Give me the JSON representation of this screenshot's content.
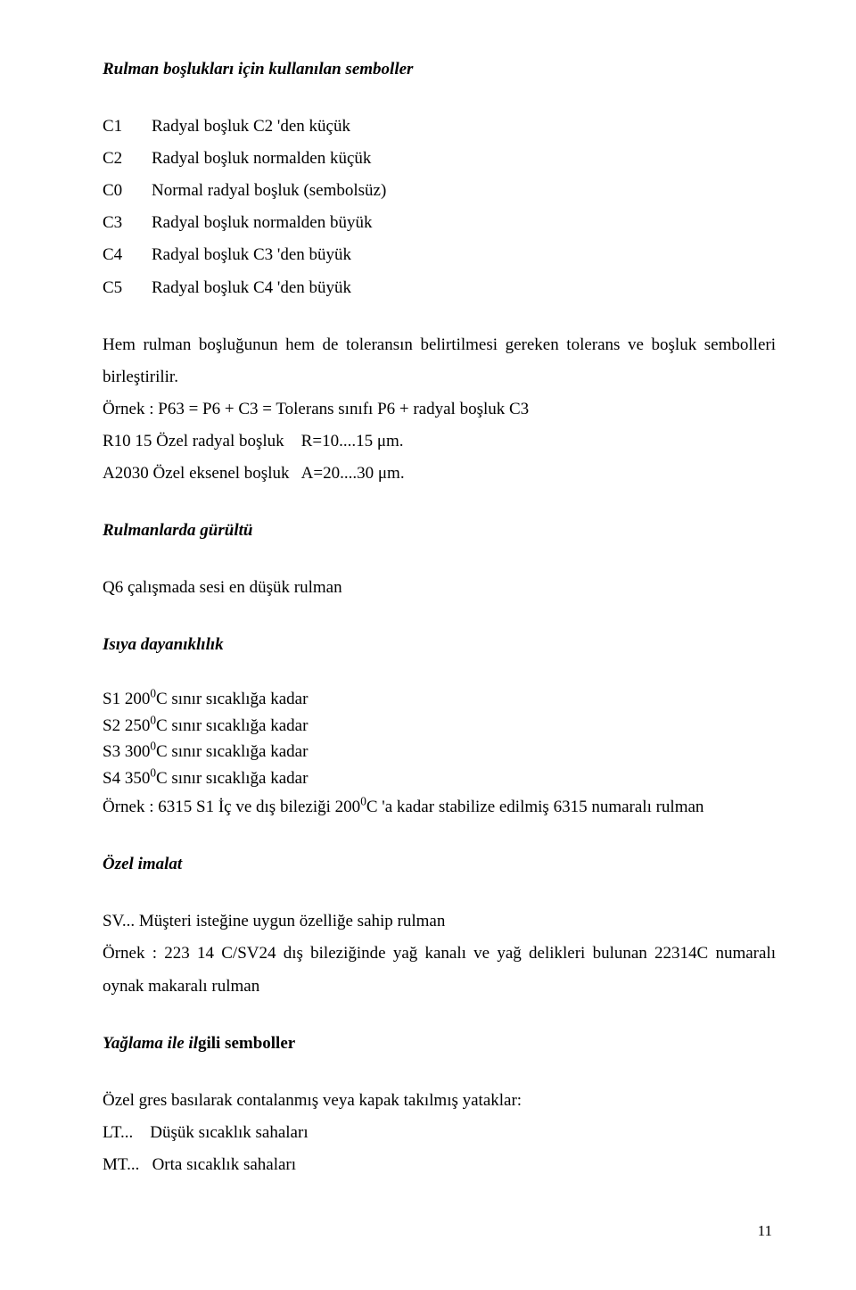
{
  "heading_symbols": "Rulman boşlukları için kullanılan semboller",
  "codes": [
    {
      "c": "C1",
      "d": "Radyal boşluk C2 'den küçük"
    },
    {
      "c": "C2",
      "d": "Radyal boşluk normalden küçük"
    },
    {
      "c": "C0",
      "d": "Normal radyal boşluk (sembolsüz)"
    },
    {
      "c": "C3",
      "d": "Radyal boşluk normalden büyük"
    },
    {
      "c": "C4",
      "d": "Radyal boşluk C3 'den büyük"
    },
    {
      "c": "C5",
      "d": "Radyal boşluk C4 'den büyük"
    }
  ],
  "para_tolerance": "Hem rulman boşluğunun hem de toleransın belirtilmesi gereken tolerans ve boşluk sembolleri birleştirilir.",
  "ornek1": "Örnek : P63 = P6 + C3 = Tolerans sınıfı P6 + radyal boşluk C3",
  "r1015": "R10 15 Özel radyal boşluk    R=10....15 μm.",
  "a2030": "A2030 Özel eksenel boşluk   A=20....30 μm.",
  "heading_noise": "Rulmanlarda gürültü",
  "q6": "Q6 çalışmada sesi en düşük rulman",
  "heading_heat": "Isıya dayanıklılık",
  "s_lines": [
    {
      "pre": "S1 200",
      "sup": "0",
      "post": "C sınır sıcaklığa kadar"
    },
    {
      "pre": "S2 250",
      "sup": "0",
      "post": "C sınır sıcaklığa kadar"
    },
    {
      "pre": "S3 300",
      "sup": "0",
      "post": "C sınır sıcaklığa kadar"
    },
    {
      "pre": "S4 350",
      "sup": "0",
      "post": "C sınır sıcaklığa kadar"
    }
  ],
  "ornek2_pre": "Örnek : 6315 S1 İç ve dış bileziği 200",
  "ornek2_sup": "0",
  "ornek2_post": "C 'a kadar stabilize edilmiş 6315 numaralı rulman",
  "heading_ozel": "Özel imalat",
  "sv_line": "SV... Müşteri isteğine uygun özelliğe sahip rulman",
  "ornek3": "Örnek : 223 14 C/SV24 dış bileziğinde yağ kanalı ve yağ delikleri bulunan 22314C numaralı oynak makaralı rulman",
  "heading_lub_pre": "Yağlama ile il",
  "heading_lub_post": "gili semboller",
  "gres": "Özel gres basılarak contalanmış veya kapak takılmış yataklar:",
  "lt": "LT...    Düşük sıcaklık sahaları",
  "mt": "MT...   Orta sıcaklık sahaları",
  "page_number": "11"
}
